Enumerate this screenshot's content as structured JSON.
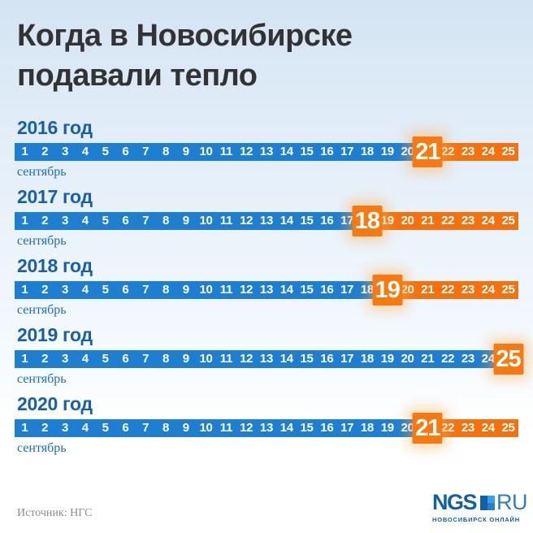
{
  "title": {
    "line1": "Когда в Новосибирске",
    "line2": "подавали тепло"
  },
  "month_label": "сентябрь",
  "days": {
    "start": 1,
    "end": 25
  },
  "timelines": [
    {
      "year_label": "2016 год",
      "highlight_day": 21
    },
    {
      "year_label": "2017 год",
      "highlight_day": 18
    },
    {
      "year_label": "2018 год",
      "highlight_day": 19
    },
    {
      "year_label": "2019 год",
      "highlight_day": 25
    },
    {
      "year_label": "2020 год",
      "highlight_day": 21
    }
  ],
  "chart_data": {
    "type": "bar",
    "title": "Когда в Новосибирске подавали тепло",
    "categories": [
      "2016 год",
      "2017 год",
      "2018 год",
      "2019 год",
      "2020 год"
    ],
    "values": [
      21,
      18,
      19,
      25,
      21
    ],
    "xlabel": "сентябрь",
    "x_range": [
      1,
      25
    ],
    "legend": false,
    "grid": false
  },
  "footer": {
    "source": "Источник: НГС",
    "logo": {
      "ngs": "NGS",
      "ru": "RU",
      "tagline": "НОВОСИБИРСК ОНЛАЙН"
    }
  },
  "colors": {
    "title_text": "#333333",
    "year_label": "#1560a8",
    "month_label": "#1c6db4",
    "bar_blue": "#1e7fd1",
    "bar_orange": "#f4720e",
    "highlight_orange": "#f8790f",
    "source_text": "#8a8a8a",
    "logo_dark_blue": "#1260a5",
    "logo_mid_blue": "#2a7fc4",
    "logo_light_blue": "#33a0e8"
  }
}
